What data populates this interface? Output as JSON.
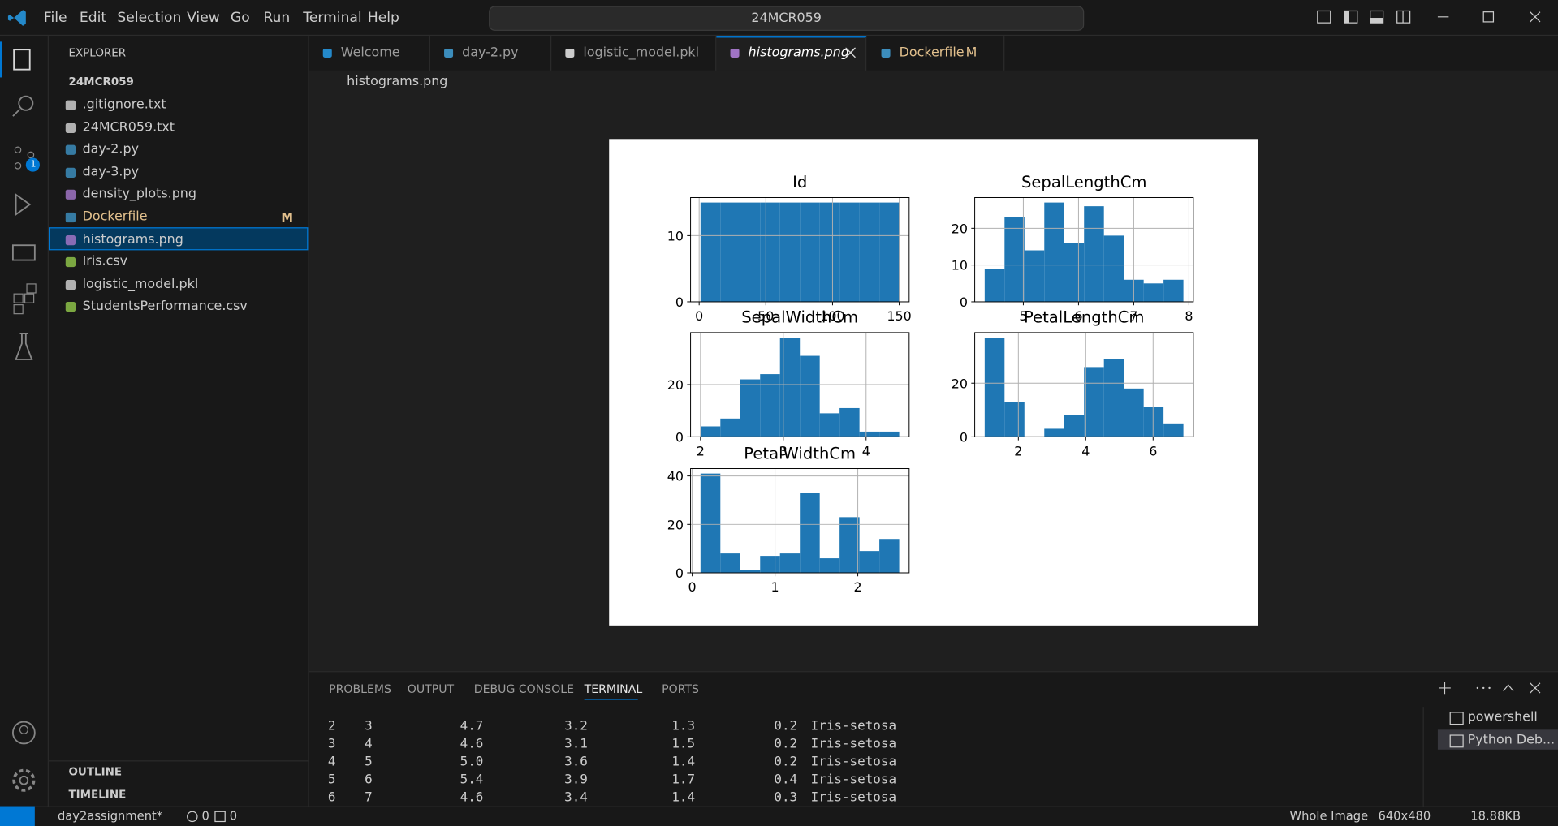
{
  "menu": [
    "File",
    "Edit",
    "Selection",
    "View",
    "Go",
    "Run",
    "Terminal",
    "Help"
  ],
  "search": "24MCR059",
  "activity_bar": {
    "source_control_badge": "1"
  },
  "explorer": {
    "title": "EXPLORER",
    "folder": "24MCR059",
    "files": [
      {
        "name": ".gitignore.txt"
      },
      {
        "name": "24MCR059.txt"
      },
      {
        "name": "day-2.py"
      },
      {
        "name": "day-3.py"
      },
      {
        "name": "density_plots.png"
      },
      {
        "name": "Dockerfile",
        "badge": "M"
      },
      {
        "name": "histograms.png"
      },
      {
        "name": "Iris.csv"
      },
      {
        "name": "logistic_model.pkl"
      },
      {
        "name": "StudentsPerformance.csv"
      }
    ],
    "sections": [
      "OUTLINE",
      "TIMELINE"
    ]
  },
  "tabs": [
    {
      "name": "Welcome"
    },
    {
      "name": "day-2.py"
    },
    {
      "name": "logistic_model.pkl"
    },
    {
      "name": "histograms.png"
    },
    {
      "name": "Dockerfile",
      "badge": "M"
    }
  ],
  "breadcrumb": "histograms.png",
  "chart_data": [
    {
      "type": "histogram",
      "title": "Id",
      "bins": [
        1,
        15.9,
        30.8,
        45.7,
        60.6,
        75.5,
        90.4,
        105.3,
        120.2,
        135.1,
        150
      ],
      "values": [
        15,
        15,
        15,
        15,
        15,
        15,
        15,
        15,
        15,
        15
      ],
      "xlim": [
        -6.45,
        157.45
      ],
      "ylim": [
        0,
        15.75
      ],
      "xticks": [
        0,
        50,
        100,
        150
      ],
      "yticks": [
        0,
        10
      ],
      "color": "#1f77b4",
      "grid": true
    },
    {
      "type": "histogram",
      "title": "SepalLengthCm",
      "bins": [
        4.3,
        4.66,
        5.02,
        5.38,
        5.74,
        6.1,
        6.46,
        6.82,
        7.18,
        7.54,
        7.9
      ],
      "values": [
        9,
        23,
        14,
        27,
        16,
        26,
        18,
        6,
        5,
        6
      ],
      "xlim": [
        4.12,
        8.08
      ],
      "ylim": [
        0,
        28.35
      ],
      "xticks": [
        5,
        6,
        7,
        8
      ],
      "yticks": [
        0,
        10,
        20
      ],
      "color": "#1f77b4",
      "grid": true
    },
    {
      "type": "histogram",
      "title": "SepalWidthCm",
      "bins": [
        2.0,
        2.24,
        2.48,
        2.72,
        2.96,
        3.2,
        3.44,
        3.68,
        3.92,
        4.16,
        4.4
      ],
      "values": [
        4,
        7,
        22,
        24,
        38,
        31,
        9,
        11,
        2,
        2
      ],
      "xlim": [
        1.88,
        4.52
      ],
      "ylim": [
        0,
        39.9
      ],
      "xticks": [
        2,
        3,
        4
      ],
      "yticks": [
        0,
        20
      ],
      "color": "#1f77b4",
      "grid": true
    },
    {
      "type": "histogram",
      "title": "PetalLengthCm",
      "bins": [
        1.0,
        1.59,
        2.18,
        2.77,
        3.36,
        3.95,
        4.54,
        5.13,
        5.72,
        6.31,
        6.9
      ],
      "values": [
        37,
        13,
        0,
        3,
        8,
        26,
        29,
        18,
        11,
        5
      ],
      "xlim": [
        0.705,
        7.195
      ],
      "ylim": [
        0,
        38.85
      ],
      "xticks": [
        2,
        4,
        6
      ],
      "yticks": [
        0,
        20
      ],
      "color": "#1f77b4",
      "grid": true
    },
    {
      "type": "histogram",
      "title": "PetalWidthCm",
      "bins": [
        0.1,
        0.34,
        0.58,
        0.82,
        1.06,
        1.3,
        1.54,
        1.78,
        2.02,
        2.26,
        2.5
      ],
      "values": [
        41,
        8,
        1,
        7,
        8,
        33,
        6,
        23,
        9,
        14
      ],
      "xlim": [
        -0.02,
        2.62
      ],
      "ylim": [
        0,
        43.05
      ],
      "xticks": [
        0,
        1,
        2
      ],
      "yticks": [
        0,
        20,
        40
      ],
      "color": "#1f77b4",
      "grid": true
    }
  ],
  "panel": {
    "tabs": [
      "PROBLEMS",
      "OUTPUT",
      "DEBUG CONSOLE",
      "TERMINAL",
      "PORTS"
    ],
    "rows": [
      [
        "2",
        "3",
        "4.7",
        "3.2",
        "1.3",
        "0.2",
        "Iris-setosa"
      ],
      [
        "3",
        "4",
        "4.6",
        "3.1",
        "1.5",
        "0.2",
        "Iris-setosa"
      ],
      [
        "4",
        "5",
        "5.0",
        "3.6",
        "1.4",
        "0.2",
        "Iris-setosa"
      ],
      [
        "5",
        "6",
        "5.4",
        "3.9",
        "1.7",
        "0.4",
        "Iris-setosa"
      ],
      [
        "6",
        "7",
        "4.6",
        "3.4",
        "1.4",
        "0.3",
        "Iris-setosa"
      ]
    ],
    "terminals": [
      "powershell",
      "Python Deb..."
    ]
  },
  "status": {
    "branch": "day2assignment*",
    "errors": "0",
    "warnings": "0",
    "right": [
      "Whole Image",
      "640x480",
      "18.88KB"
    ]
  }
}
